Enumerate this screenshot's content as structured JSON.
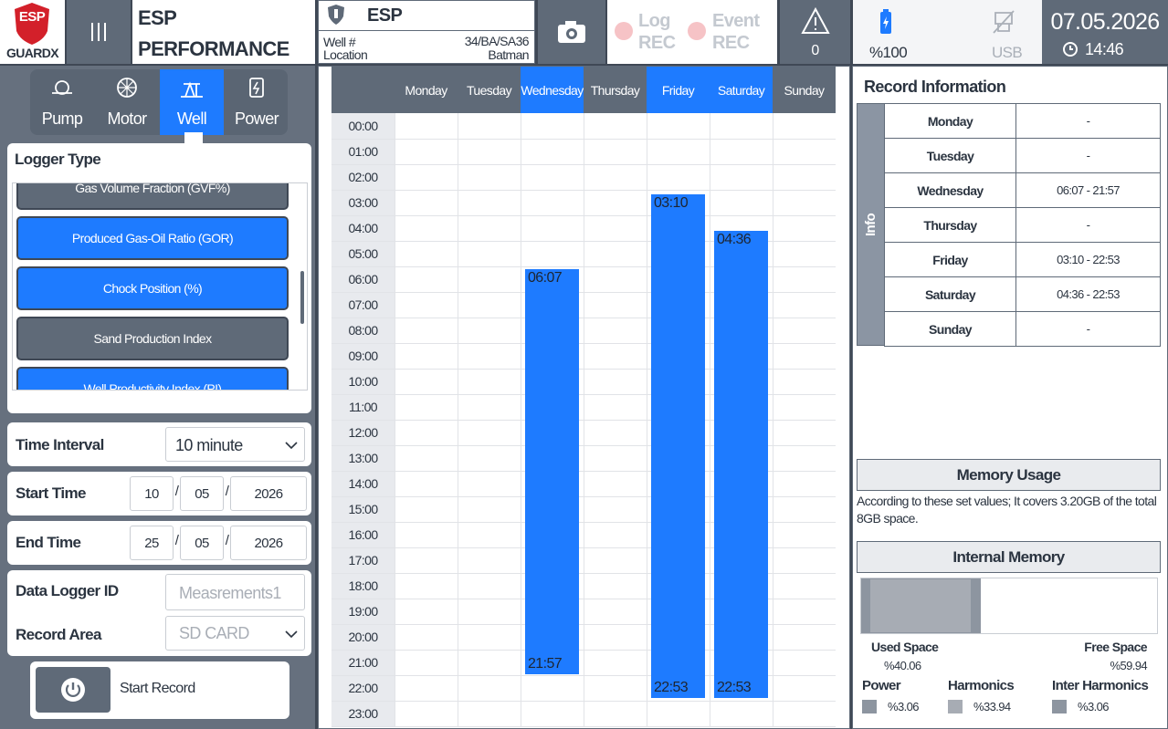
{
  "header": {
    "logo": "ESP",
    "brand": "GUARDX",
    "title": "ESP PERFORMANCE SETTINGS",
    "device": "ESP",
    "well_label": "Well #",
    "well_value": "34/BA/SA36",
    "location_label": "Location",
    "location_value": "Batman",
    "log_rec": "Log REC",
    "event_rec": "Event REC",
    "alerts": "0",
    "battery": "%100",
    "usb": "USB",
    "date": "07.05.2026",
    "time": "14:46"
  },
  "tabs": [
    {
      "label": "Pump",
      "active": false
    },
    {
      "label": "Motor",
      "active": false
    },
    {
      "label": "Well",
      "active": true
    },
    {
      "label": "Power",
      "active": false
    }
  ],
  "logger_type": {
    "title": "Logger Type",
    "items": [
      {
        "label": "Gas Volume Fraction (GVF%)",
        "selected": false
      },
      {
        "label": "Produced Gas-Oil Ratio (GOR)",
        "selected": true
      },
      {
        "label": "Chock Position (%)",
        "selected": true
      },
      {
        "label": "Sand Production Index",
        "selected": false
      },
      {
        "label": "Well Productivity Index (PI)",
        "selected": true
      }
    ]
  },
  "form": {
    "time_interval": {
      "label": "Time Interval",
      "value": "10 minute"
    },
    "start_time": {
      "label": "Start Time",
      "day": "10",
      "month": "05",
      "year": "2026"
    },
    "end_time": {
      "label": "End Time",
      "day": "25",
      "month": "05",
      "year": "2026"
    },
    "separator": "/",
    "data_logger_id": {
      "label": "Data Logger ID",
      "placeholder": "Measrements1"
    },
    "record_area": {
      "label": "Record Area",
      "value": "SD CARD"
    },
    "start_button": "Start Record"
  },
  "schedule": {
    "days": [
      "Monday",
      "Tuesday",
      "Wednesday",
      "Thursday",
      "Friday",
      "Saturday",
      "Sunday"
    ],
    "hours": [
      "00:00",
      "01:00",
      "02:00",
      "03:00",
      "04:00",
      "05:00",
      "06:00",
      "07:00",
      "08:00",
      "09:00",
      "10:00",
      "11:00",
      "12:00",
      "13:00",
      "14:00",
      "15:00",
      "16:00",
      "17:00",
      "18:00",
      "19:00",
      "20:00",
      "21:00",
      "22:00",
      "23:00"
    ],
    "records": [
      null,
      null,
      {
        "start": "06:07",
        "end": "21:57"
      },
      null,
      {
        "start": "03:10",
        "end": "22:53"
      },
      {
        "start": "04:36",
        "end": "22:53"
      },
      null
    ]
  },
  "record_info": {
    "title": "Record Information",
    "side_label": "Info",
    "rows": [
      {
        "day": "Monday",
        "value": "-"
      },
      {
        "day": "Tuesday",
        "value": "-"
      },
      {
        "day": "Wednesday",
        "value": "06:07 - 21:57"
      },
      {
        "day": "Thursday",
        "value": "-"
      },
      {
        "day": "Friday",
        "value": "03:10 - 22:53"
      },
      {
        "day": "Saturday",
        "value": "04:36 - 22:53"
      },
      {
        "day": "Sunday",
        "value": "-"
      }
    ]
  },
  "memory": {
    "title": "Memory Usage",
    "note": "According to these set values; It covers 3.20GB of the total 8GB space.",
    "internal_title": "Internal Memory",
    "used": {
      "label": "Used Space",
      "value": 40.06,
      "value_label": "%40.06"
    },
    "free": {
      "label": "Free Space",
      "value": 59.94,
      "value_label": "%59.94"
    },
    "breakdown": [
      {
        "name": "Power",
        "value": 3.06,
        "value_label": "%3.06",
        "color": "#8d95a0"
      },
      {
        "name": "Harmonics",
        "value": 33.94,
        "value_label": "%33.94",
        "color": "#a7acb4"
      },
      {
        "name": "Inter Harmonics",
        "value": 3.06,
        "value_label": "%3.06",
        "color": "#8d95a0"
      }
    ]
  }
}
